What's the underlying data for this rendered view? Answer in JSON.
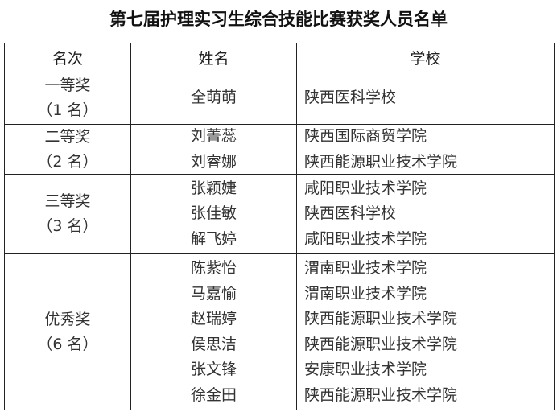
{
  "title": "第七届护理实习生综合技能比赛获奖人员名单",
  "headers": {
    "rank": "名次",
    "name": "姓名",
    "school": "学校"
  },
  "groups": [
    {
      "rank": "一等奖",
      "count": "（1 名）",
      "members": [
        {
          "name": "全萌萌",
          "school": "陕西医科学校"
        }
      ]
    },
    {
      "rank": "二等奖",
      "count": "（2 名）",
      "members": [
        {
          "name": "刘菁蕊",
          "school": "陕西国际商贸学院"
        },
        {
          "name": "刘睿娜",
          "school": "陕西能源职业技术学院"
        }
      ]
    },
    {
      "rank": "三等奖",
      "count": "（3 名）",
      "members": [
        {
          "name": "张颖婕",
          "school": "咸阳职业技术学院"
        },
        {
          "name": "张佳敏",
          "school": "陕西医科学校"
        },
        {
          "name": "解飞婷",
          "school": "咸阳职业技术学院"
        }
      ]
    },
    {
      "rank": "优秀奖",
      "count": "（6 名）",
      "members": [
        {
          "name": "陈紫怡",
          "school": "渭南职业技术学院"
        },
        {
          "name": "马嘉愉",
          "school": "渭南职业技术学院"
        },
        {
          "name": "赵瑞婷",
          "school": "陕西能源职业技术学院"
        },
        {
          "name": "侯思洁",
          "school": "陕西能源职业技术学院"
        },
        {
          "name": "张文锋",
          "school": "安康职业技术学院"
        },
        {
          "name": "徐金田",
          "school": "陕西能源职业技术学院"
        }
      ]
    }
  ]
}
